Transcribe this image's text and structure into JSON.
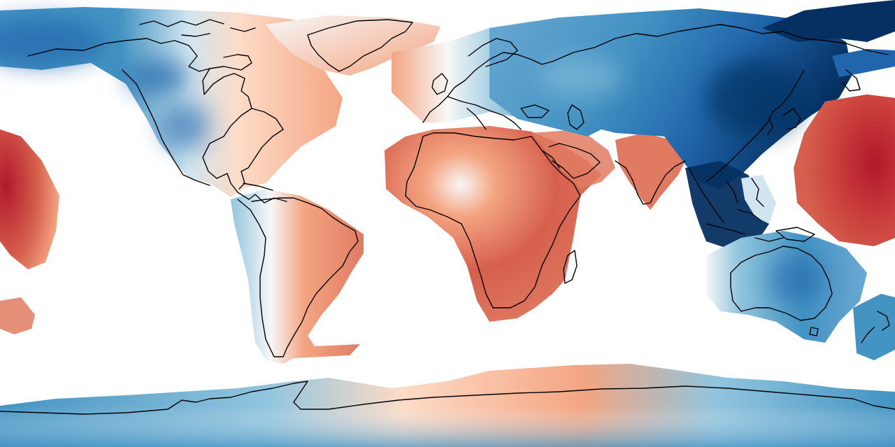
{
  "map": {
    "projection": "plate-carree",
    "colormap": "RdBu diverging",
    "colors": {
      "deep_red": "#b2182b",
      "red": "#d6604d",
      "salmon": "#f4a582",
      "light_red": "#fddbc7",
      "neutral": "#f7f7f7",
      "light_blue": "#d1e5f0",
      "sky_blue": "#92c5de",
      "blue": "#4393c3",
      "mid_blue": "#2166ac",
      "navy": "#053061",
      "coastline": "#000000",
      "ocean": "#ffffff"
    },
    "regions": [
      "north-america",
      "greenland",
      "south-america",
      "europe",
      "africa",
      "arabia",
      "india",
      "asia",
      "southeast-asia",
      "australia",
      "new-zealand",
      "antarctica",
      "pacific-west",
      "pacific-east"
    ]
  }
}
